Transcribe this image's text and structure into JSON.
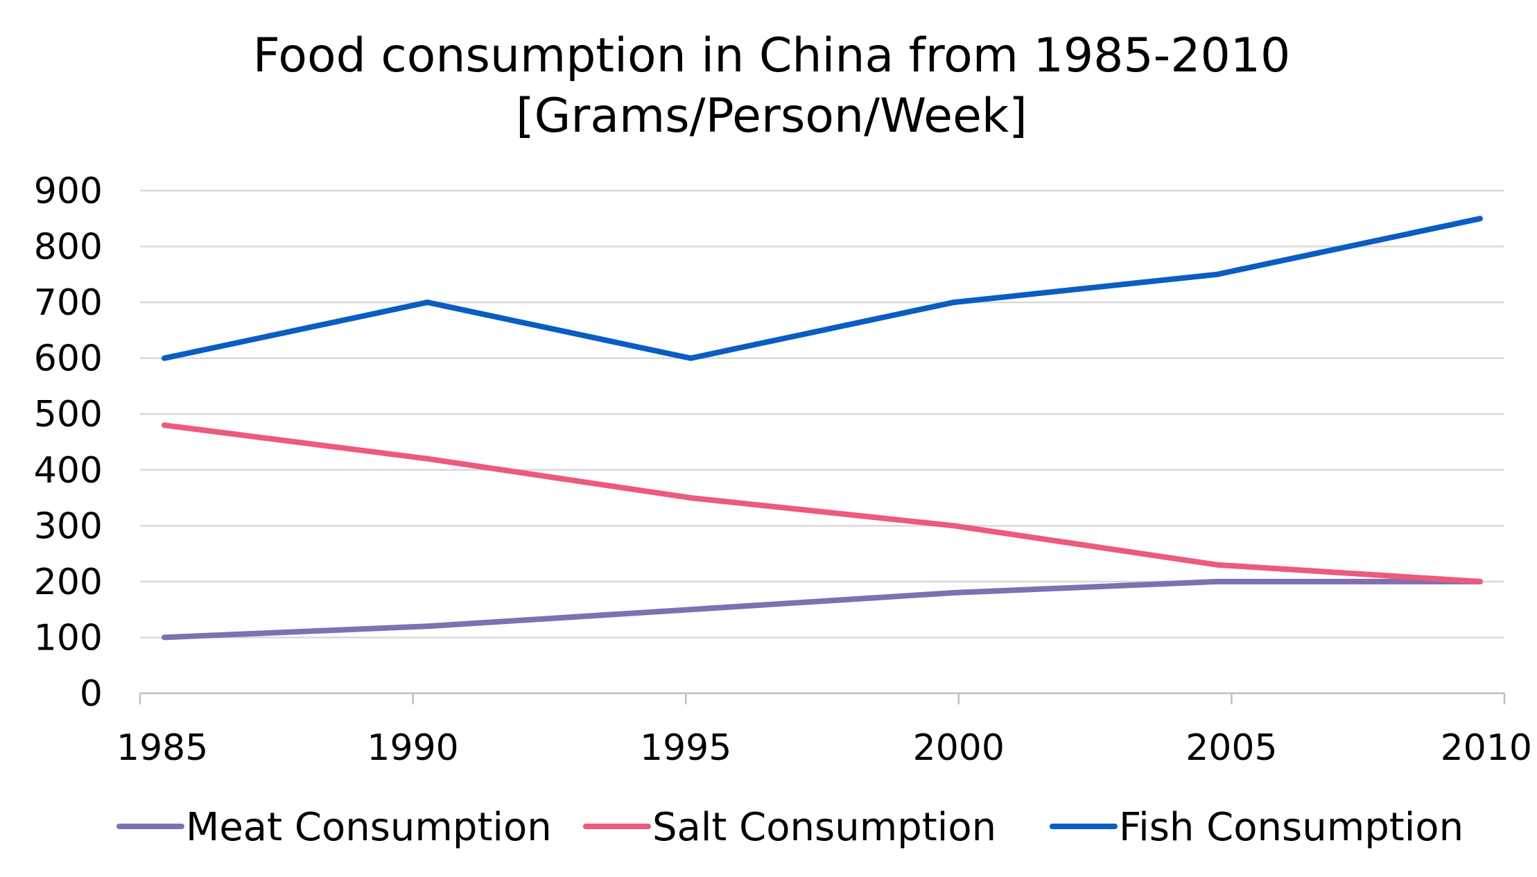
{
  "chart_data": {
    "type": "line",
    "title": "Food consumption in China from 1985-2010",
    "subtitle": "[Grams/Person/Week]",
    "xlabel": "",
    "ylabel": "",
    "x": [
      "1985",
      "1990",
      "1995",
      "2000",
      "2005",
      "2010"
    ],
    "ylim": [
      0,
      900
    ],
    "yticks": [
      "0",
      "100",
      "200",
      "300",
      "400",
      "500",
      "600",
      "700",
      "800",
      "900"
    ],
    "grid": true,
    "legend_position": "bottom",
    "series": [
      {
        "name": "Meat Consumption",
        "color": "#8070b0",
        "values": [
          100,
          120,
          150,
          180,
          200,
          200
        ]
      },
      {
        "name": "Salt Consumption",
        "color": "#ec5a7c",
        "values": [
          480,
          420,
          350,
          300,
          230,
          200
        ]
      },
      {
        "name": "Fish Consumption",
        "color": "#0a5dc2",
        "values": [
          600,
          700,
          600,
          700,
          750,
          850
        ]
      }
    ]
  }
}
